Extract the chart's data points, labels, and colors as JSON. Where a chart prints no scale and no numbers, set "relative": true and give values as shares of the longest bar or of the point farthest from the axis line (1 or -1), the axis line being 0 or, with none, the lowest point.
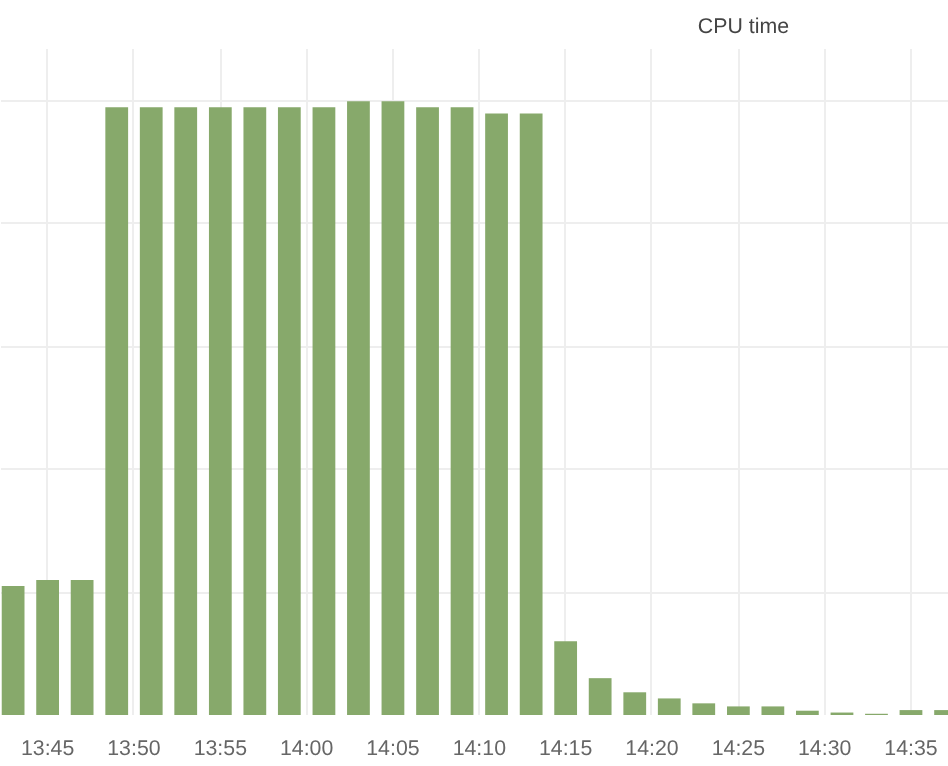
{
  "chart_data": {
    "type": "bar",
    "title": "CPU time",
    "relative": true,
    "color": "#87a96b",
    "grid": true,
    "x": [
      13.7167,
      13.75,
      13.7833,
      13.8167,
      13.85,
      13.8833,
      13.9167,
      13.95,
      13.9833,
      14.0167,
      14.05,
      14.0833,
      14.1167,
      14.15,
      14.1833,
      14.2167,
      14.25,
      14.2833,
      14.3167,
      14.35,
      14.3833,
      14.4167,
      14.45,
      14.4833,
      14.5167,
      14.55,
      14.5833,
      14.6167
    ],
    "values": [
      0.21,
      0.22,
      0.22,
      0.99,
      0.99,
      0.99,
      0.99,
      0.99,
      0.99,
      0.99,
      1.0,
      1.0,
      0.99,
      0.99,
      0.98,
      0.98,
      0.12,
      0.06,
      0.037,
      0.027,
      0.019,
      0.014,
      0.014,
      0.007,
      0.004,
      0.002,
      0.008,
      0.008
    ],
    "xlim": [
      13.705,
      14.62
    ],
    "xticks": [
      {
        "value": 13.75,
        "label": "13:45"
      },
      {
        "value": 13.8333,
        "label": "13:50"
      },
      {
        "value": 13.9167,
        "label": "13:55"
      },
      {
        "value": 14.0,
        "label": "14:00"
      },
      {
        "value": 14.0833,
        "label": "14:05"
      },
      {
        "value": 14.1667,
        "label": "14:10"
      },
      {
        "value": 14.25,
        "label": "14:15"
      },
      {
        "value": 14.3333,
        "label": "14:20"
      },
      {
        "value": 14.4167,
        "label": "14:25"
      },
      {
        "value": 14.5,
        "label": "14:30"
      },
      {
        "value": 14.5833,
        "label": "14:35"
      }
    ]
  }
}
